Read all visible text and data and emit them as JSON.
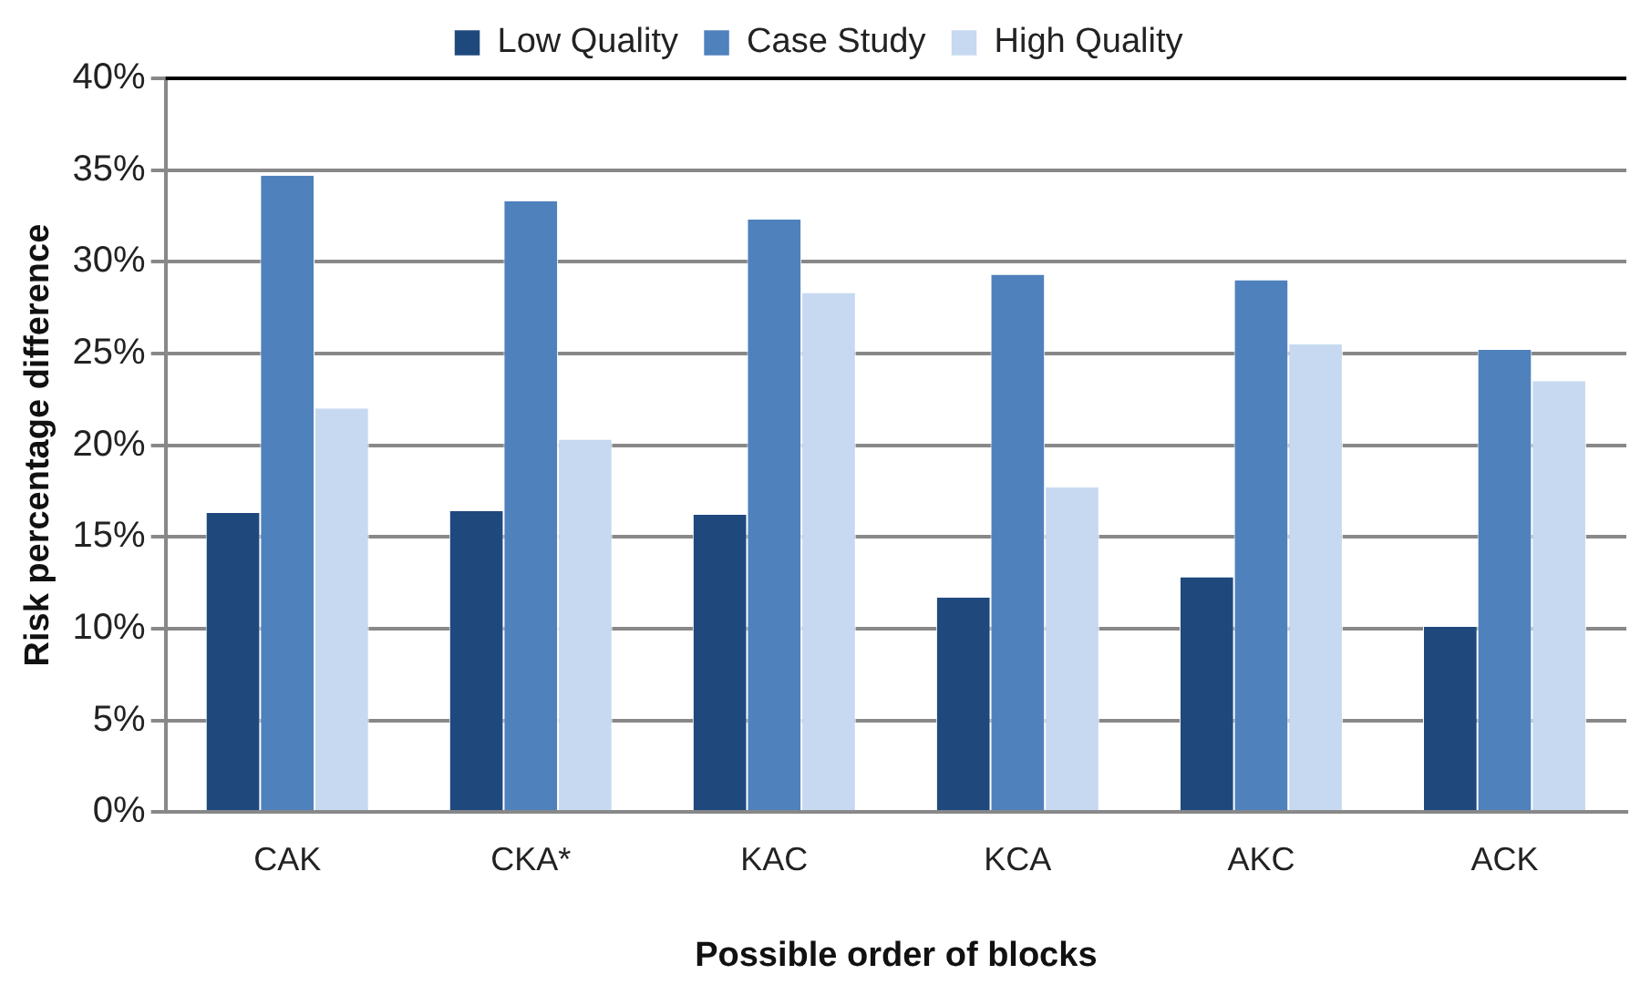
{
  "chart_data": {
    "type": "bar",
    "xlabel": "Possible order of blocks",
    "ylabel": "Risk percentage difference",
    "categories": [
      "CAK",
      "CKA*",
      "KAC",
      "KCA",
      "AKC",
      "ACK"
    ],
    "series": [
      {
        "name": "Low Quality",
        "color": "#1f497d",
        "values": [
          16.3,
          16.4,
          16.2,
          11.7,
          12.8,
          10.1
        ]
      },
      {
        "name": "Case Study",
        "color": "#4f81bd",
        "values": [
          34.7,
          33.3,
          32.3,
          29.3,
          29.0,
          25.2
        ]
      },
      {
        "name": "High Quality",
        "color": "#c6d9f0",
        "values": [
          22.0,
          20.3,
          28.3,
          17.7,
          25.5,
          23.5
        ]
      }
    ],
    "ylim": [
      0,
      40
    ],
    "yticks": [
      {
        "value": 0,
        "label": "0%"
      },
      {
        "value": 5,
        "label": "5%"
      },
      {
        "value": 10,
        "label": "10%"
      },
      {
        "value": 15,
        "label": "15%"
      },
      {
        "value": 20,
        "label": "20%"
      },
      {
        "value": 25,
        "label": "25%"
      },
      {
        "value": 30,
        "label": "30%"
      },
      {
        "value": 35,
        "label": "35%"
      },
      {
        "value": 40,
        "label": "40%"
      }
    ],
    "grid": "y",
    "legend": "top"
  }
}
